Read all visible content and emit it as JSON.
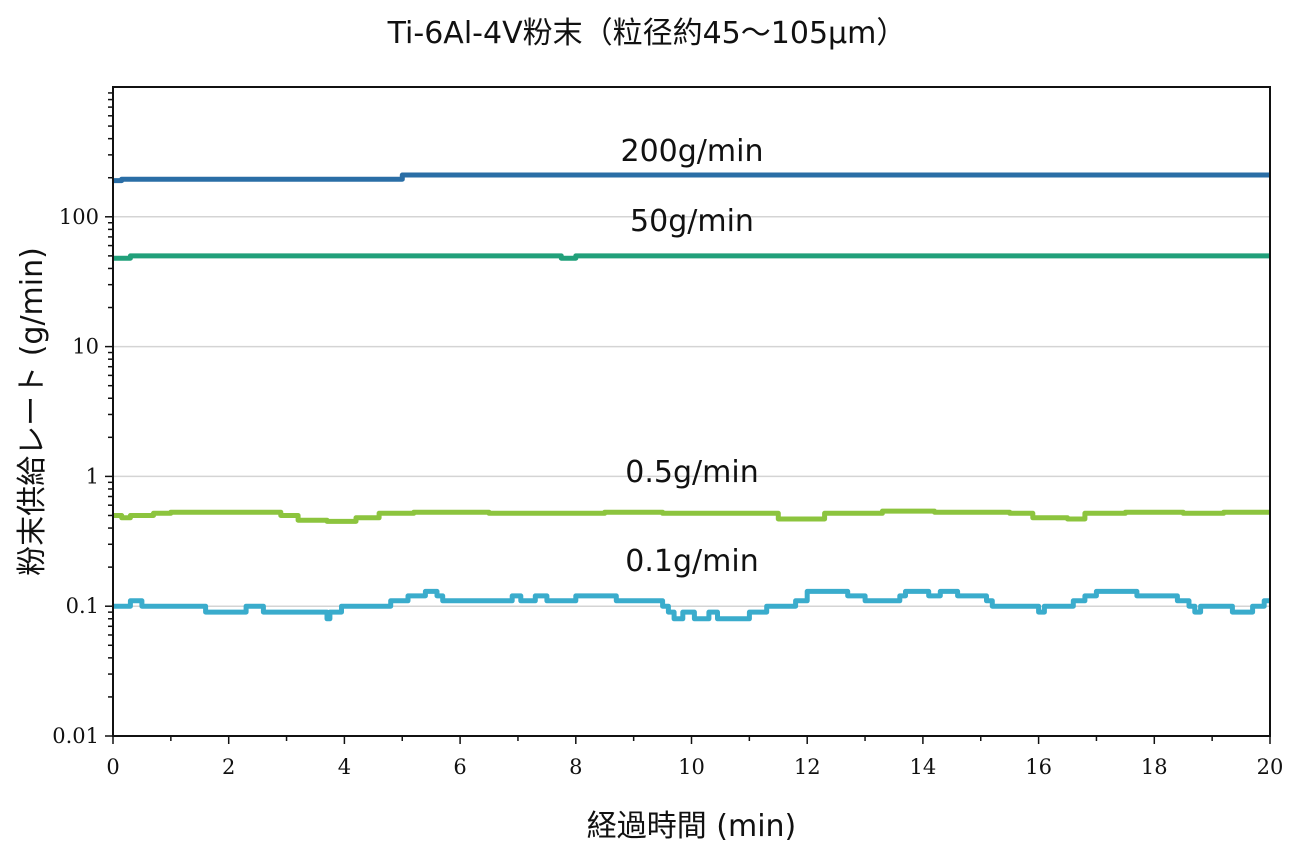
{
  "chart_data": {
    "type": "line",
    "title": "Ti-6Al-4V粉末（粒径約45～105µm）",
    "xlabel": "経過時間 (min)",
    "ylabel": "粉末供給レート (g/min)",
    "xlim": [
      0,
      20
    ],
    "ylim": [
      0.01,
      1000
    ],
    "yscale": "log",
    "grid": "horizontal",
    "x_ticks": [
      "0",
      "2",
      "4",
      "6",
      "8",
      "10",
      "12",
      "14",
      "16",
      "18",
      "20"
    ],
    "y_ticks": [
      "0.01",
      "0.1",
      "1",
      "10",
      "100"
    ],
    "series": [
      {
        "name": "200g/min",
        "color": "#2a6ea6",
        "points": [
          [
            0,
            190
          ],
          [
            0.15,
            195
          ],
          [
            4.95,
            195
          ],
          [
            5.0,
            210
          ],
          [
            20,
            210
          ]
        ]
      },
      {
        "name": "50g/min",
        "color": "#21a07a",
        "points": [
          [
            0,
            48
          ],
          [
            0.3,
            50
          ],
          [
            7.7,
            50
          ],
          [
            7.75,
            48
          ],
          [
            7.95,
            48
          ],
          [
            8.0,
            50
          ],
          [
            20,
            50
          ]
        ]
      },
      {
        "name": "0.5g/min",
        "color": "#8cc43e",
        "points": [
          [
            0,
            0.5
          ],
          [
            0.15,
            0.48
          ],
          [
            0.3,
            0.5
          ],
          [
            0.7,
            0.52
          ],
          [
            1.0,
            0.53
          ],
          [
            2.5,
            0.53
          ],
          [
            2.9,
            0.5
          ],
          [
            3.2,
            0.46
          ],
          [
            3.7,
            0.45
          ],
          [
            4.2,
            0.48
          ],
          [
            4.6,
            0.52
          ],
          [
            5.2,
            0.53
          ],
          [
            6.5,
            0.52
          ],
          [
            7.5,
            0.52
          ],
          [
            8.5,
            0.53
          ],
          [
            9.5,
            0.52
          ],
          [
            11.0,
            0.52
          ],
          [
            11.5,
            0.47
          ],
          [
            12.1,
            0.47
          ],
          [
            12.3,
            0.52
          ],
          [
            13.3,
            0.54
          ],
          [
            14.2,
            0.53
          ],
          [
            15.5,
            0.52
          ],
          [
            15.9,
            0.48
          ],
          [
            16.5,
            0.47
          ],
          [
            16.8,
            0.52
          ],
          [
            17.5,
            0.53
          ],
          [
            18.5,
            0.52
          ],
          [
            19.2,
            0.53
          ],
          [
            20,
            0.53
          ]
        ]
      },
      {
        "name": "0.1g/min",
        "color": "#3aaccc",
        "points": [
          [
            0,
            0.1
          ],
          [
            0.2,
            0.1
          ],
          [
            0.3,
            0.11
          ],
          [
            0.5,
            0.1
          ],
          [
            1.5,
            0.1
          ],
          [
            1.6,
            0.09
          ],
          [
            2.2,
            0.09
          ],
          [
            2.3,
            0.1
          ],
          [
            2.5,
            0.1
          ],
          [
            2.6,
            0.09
          ],
          [
            3.6,
            0.09
          ],
          [
            3.7,
            0.08
          ],
          [
            3.75,
            0.09
          ],
          [
            3.9,
            0.09
          ],
          [
            3.95,
            0.1
          ],
          [
            4.7,
            0.1
          ],
          [
            4.8,
            0.11
          ],
          [
            5.0,
            0.11
          ],
          [
            5.1,
            0.12
          ],
          [
            5.4,
            0.13
          ],
          [
            5.6,
            0.12
          ],
          [
            5.7,
            0.11
          ],
          [
            6.8,
            0.11
          ],
          [
            6.9,
            0.12
          ],
          [
            7.05,
            0.11
          ],
          [
            7.3,
            0.12
          ],
          [
            7.5,
            0.11
          ],
          [
            7.9,
            0.11
          ],
          [
            8.0,
            0.12
          ],
          [
            8.6,
            0.12
          ],
          [
            8.7,
            0.11
          ],
          [
            9.4,
            0.11
          ],
          [
            9.5,
            0.1
          ],
          [
            9.6,
            0.09
          ],
          [
            9.7,
            0.08
          ],
          [
            9.85,
            0.09
          ],
          [
            10.05,
            0.08
          ],
          [
            10.3,
            0.09
          ],
          [
            10.45,
            0.08
          ],
          [
            10.9,
            0.08
          ],
          [
            11.0,
            0.09
          ],
          [
            11.3,
            0.1
          ],
          [
            11.6,
            0.1
          ],
          [
            11.8,
            0.11
          ],
          [
            12.0,
            0.13
          ],
          [
            12.6,
            0.13
          ],
          [
            12.7,
            0.12
          ],
          [
            12.9,
            0.12
          ],
          [
            13.0,
            0.11
          ],
          [
            13.5,
            0.11
          ],
          [
            13.6,
            0.12
          ],
          [
            13.7,
            0.13
          ],
          [
            14.1,
            0.12
          ],
          [
            14.3,
            0.13
          ],
          [
            14.6,
            0.12
          ],
          [
            15.0,
            0.12
          ],
          [
            15.1,
            0.11
          ],
          [
            15.2,
            0.1
          ],
          [
            15.9,
            0.1
          ],
          [
            16.0,
            0.09
          ],
          [
            16.1,
            0.1
          ],
          [
            16.5,
            0.1
          ],
          [
            16.6,
            0.11
          ],
          [
            16.8,
            0.12
          ],
          [
            17.0,
            0.13
          ],
          [
            17.6,
            0.13
          ],
          [
            17.7,
            0.12
          ],
          [
            18.3,
            0.12
          ],
          [
            18.4,
            0.11
          ],
          [
            18.6,
            0.1
          ],
          [
            18.7,
            0.09
          ],
          [
            18.8,
            0.1
          ],
          [
            19.3,
            0.1
          ],
          [
            19.35,
            0.09
          ],
          [
            19.6,
            0.09
          ],
          [
            19.7,
            0.1
          ],
          [
            19.8,
            0.1
          ],
          [
            19.9,
            0.11
          ],
          [
            20,
            0.11
          ]
        ]
      }
    ]
  }
}
